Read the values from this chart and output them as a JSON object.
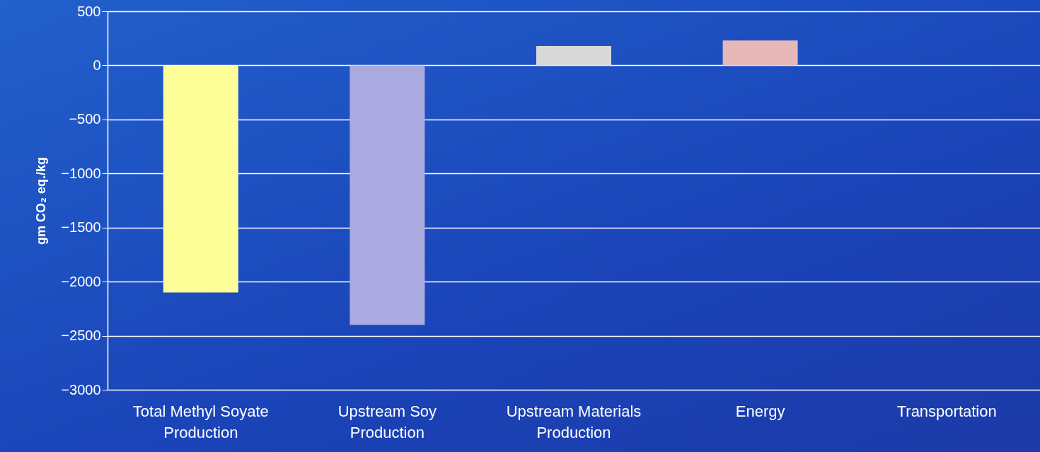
{
  "chart_data": {
    "type": "bar",
    "ylabel": "gm CO₂ eq./kg",
    "categories": [
      "Total Methyl Soyate Production",
      "Upstream Soy Production",
      "Upstream Materials Production",
      "Energy",
      "Transportation"
    ],
    "values": [
      -2100,
      -2400,
      180,
      230,
      0
    ],
    "colors": [
      "#ffff99",
      "#aaaae0",
      "#d9d9d9",
      "#e6b9b8",
      "#cfe0f0"
    ],
    "ylim": [
      -3000,
      500
    ],
    "yticks": [
      -3000,
      -2500,
      -2000,
      -1500,
      -1000,
      -500,
      0,
      500
    ],
    "grid": "y"
  }
}
